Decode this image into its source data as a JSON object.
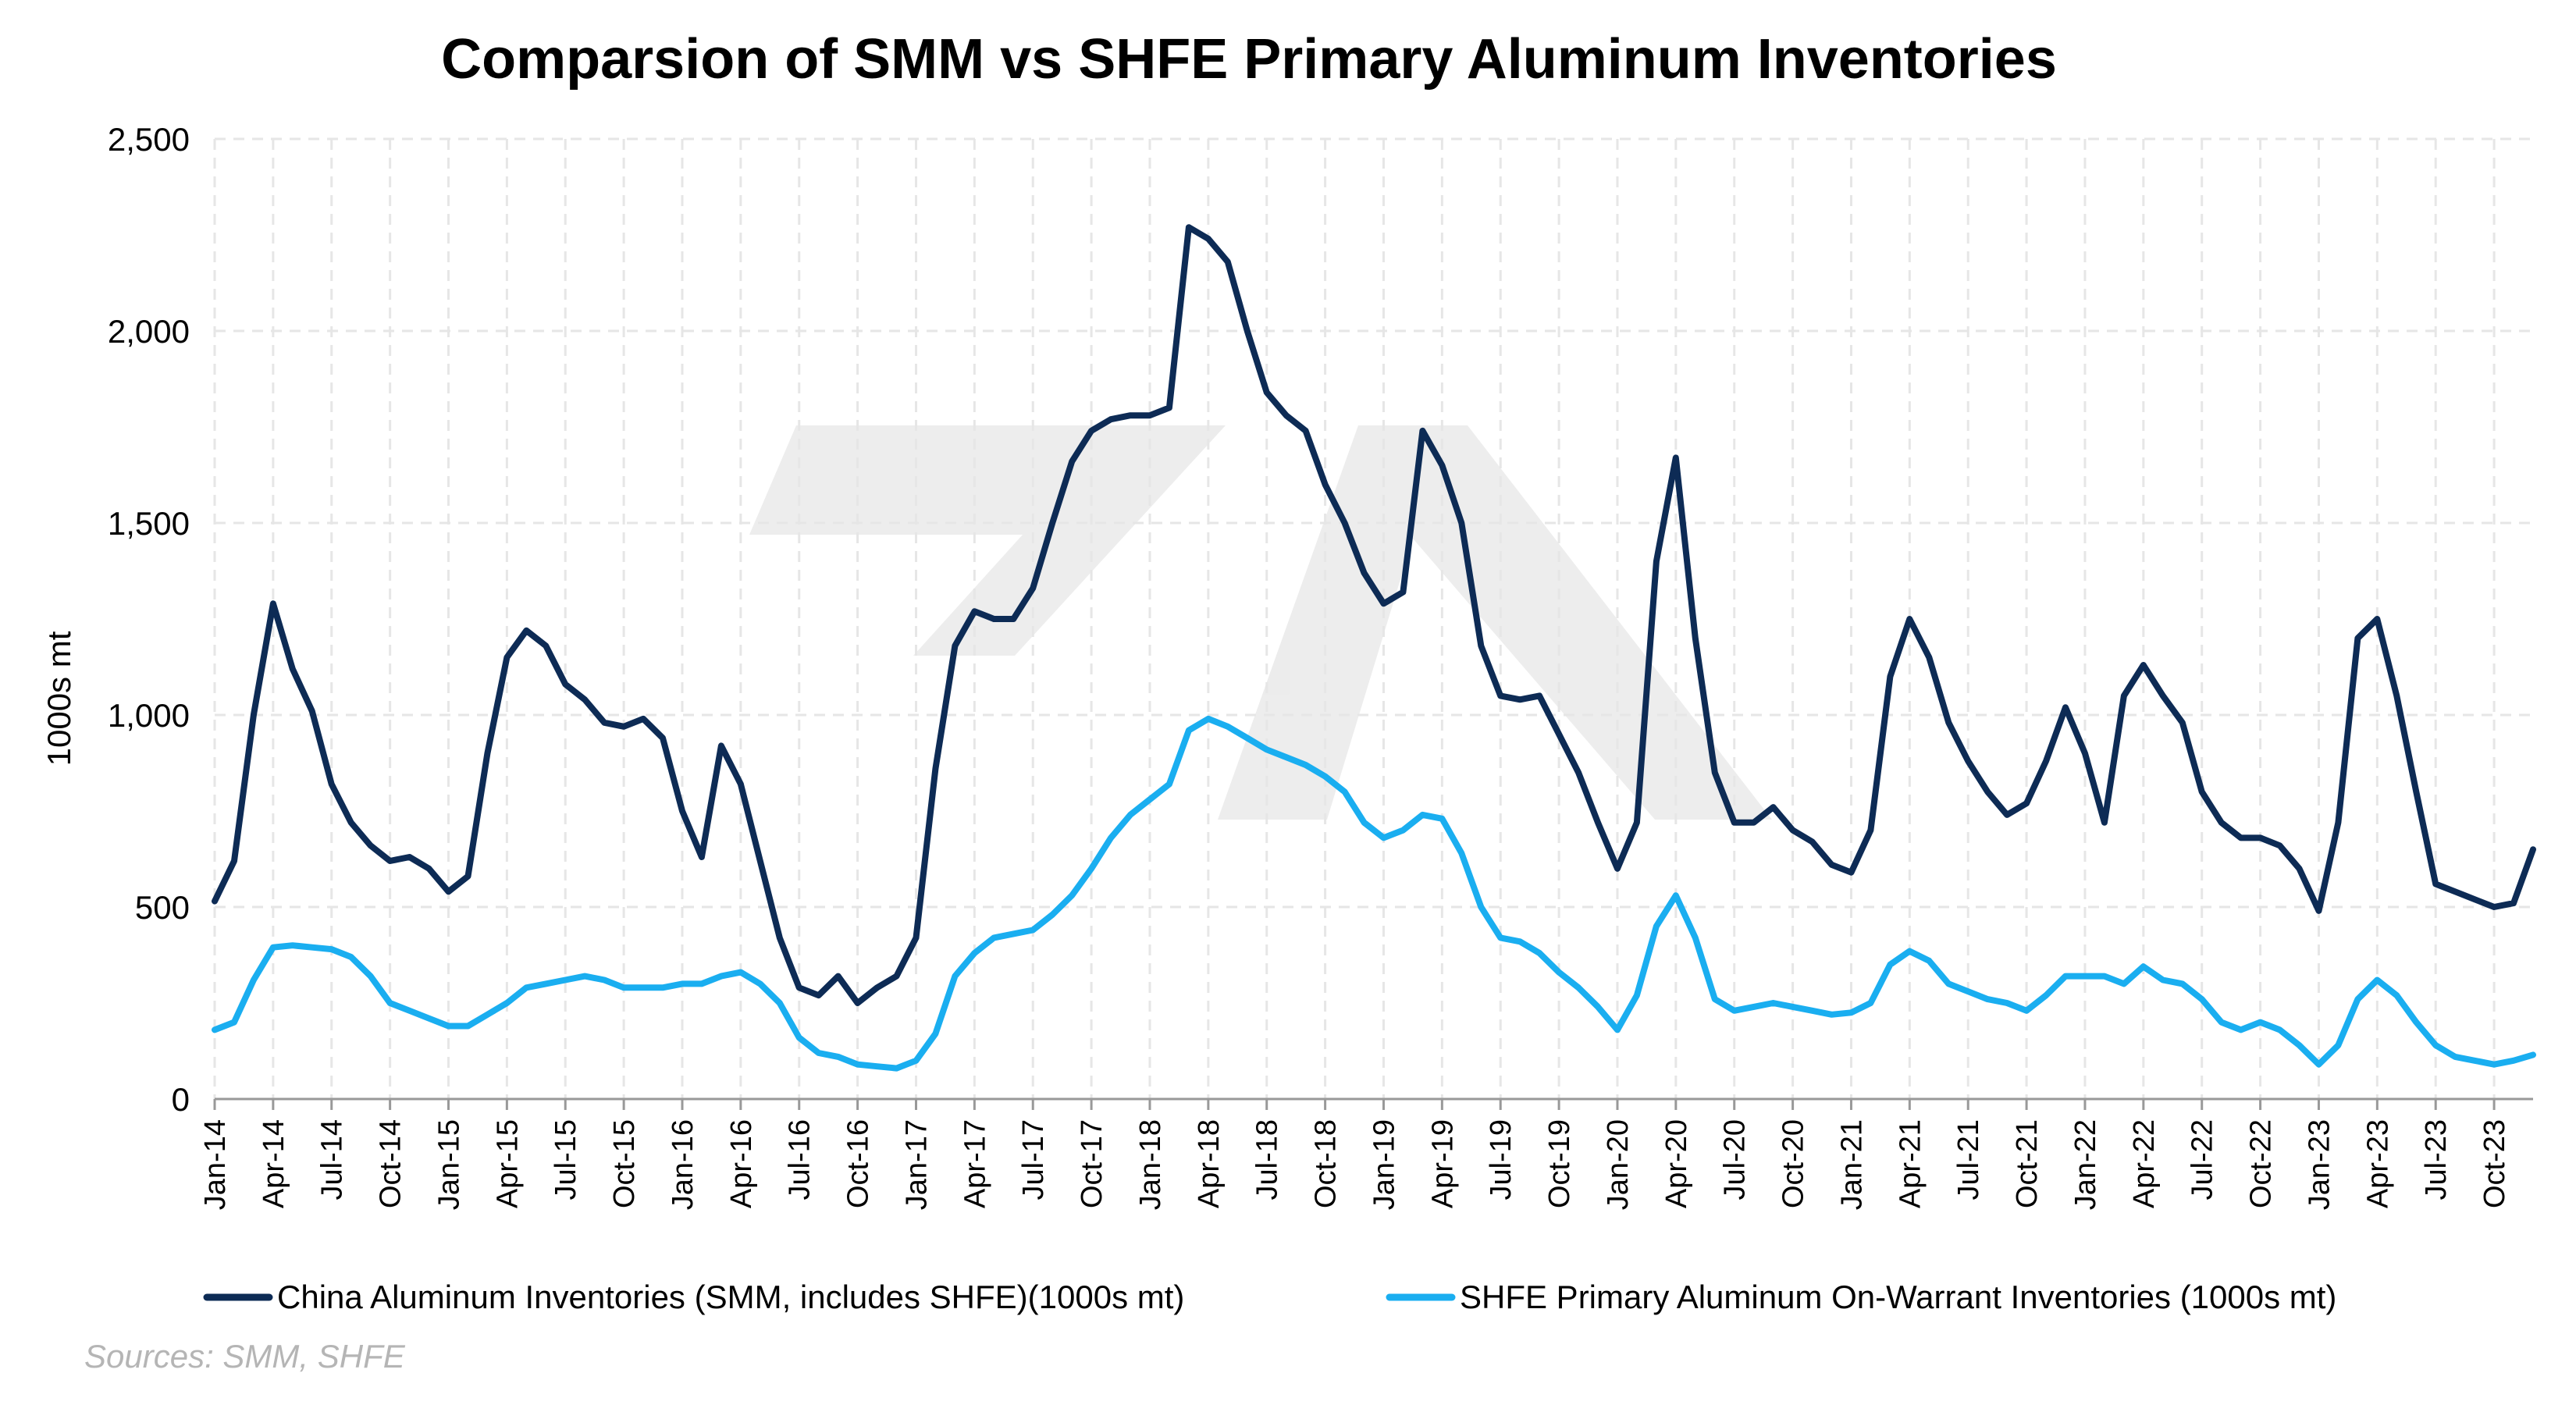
{
  "chart_data": {
    "type": "line",
    "title": "Comparsion of SMM vs SHFE Primary Aluminum Inventories",
    "ylabel": "1000s mt",
    "xlabel": "",
    "ylim": [
      0,
      2500
    ],
    "yticks": [
      0,
      500,
      1000,
      1500,
      2000,
      2500
    ],
    "ytick_labels": [
      "0",
      "500",
      "1,000",
      "1,500",
      "2,000",
      "2,500"
    ],
    "x_range": [
      "2014-01",
      "2023-12"
    ],
    "x_tick_labels": [
      "Jan-14",
      "Apr-14",
      "Jul-14",
      "Oct-14",
      "Jan-15",
      "Apr-15",
      "Jul-15",
      "Oct-15",
      "Jan-16",
      "Apr-16",
      "Jul-16",
      "Oct-16",
      "Jan-17",
      "Apr-17",
      "Jul-17",
      "Oct-17",
      "Jan-18",
      "Apr-18",
      "Jul-18",
      "Oct-18",
      "Jan-19",
      "Apr-19",
      "Jul-19",
      "Oct-19",
      "Jan-20",
      "Apr-20",
      "Jul-20",
      "Oct-20",
      "Jan-21",
      "Apr-21",
      "Jul-21",
      "Oct-21",
      "Jan-22",
      "Apr-22",
      "Jul-22",
      "Oct-22",
      "Jan-23",
      "Apr-23",
      "Jul-23",
      "Oct-23"
    ],
    "grid": true,
    "legend_position": "bottom",
    "series": [
      {
        "name": "China Aluminum Inventories (SMM, includes SHFE)(1000s mt)",
        "color": "#0d2b55",
        "points": [
          [
            "2014-01",
            515
          ],
          [
            "2014-02",
            620
          ],
          [
            "2014-03",
            1000
          ],
          [
            "2014-04",
            1290
          ],
          [
            "2014-05",
            1120
          ],
          [
            "2014-06",
            1010
          ],
          [
            "2014-07",
            820
          ],
          [
            "2014-08",
            720
          ],
          [
            "2014-09",
            660
          ],
          [
            "2014-10",
            620
          ],
          [
            "2014-11",
            630
          ],
          [
            "2014-12",
            600
          ],
          [
            "2015-01",
            540
          ],
          [
            "2015-02",
            580
          ],
          [
            "2015-03",
            900
          ],
          [
            "2015-04",
            1150
          ],
          [
            "2015-05",
            1220
          ],
          [
            "2015-06",
            1180
          ],
          [
            "2015-07",
            1080
          ],
          [
            "2015-08",
            1040
          ],
          [
            "2015-09",
            980
          ],
          [
            "2015-10",
            970
          ],
          [
            "2015-11",
            990
          ],
          [
            "2015-12",
            940
          ],
          [
            "2016-01",
            750
          ],
          [
            "2016-02",
            630
          ],
          [
            "2016-03",
            920
          ],
          [
            "2016-04",
            820
          ],
          [
            "2016-05",
            620
          ],
          [
            "2016-06",
            420
          ],
          [
            "2016-07",
            290
          ],
          [
            "2016-08",
            270
          ],
          [
            "2016-09",
            320
          ],
          [
            "2016-10",
            250
          ],
          [
            "2016-11",
            290
          ],
          [
            "2016-12",
            320
          ],
          [
            "2017-01",
            420
          ],
          [
            "2017-02",
            860
          ],
          [
            "2017-03",
            1180
          ],
          [
            "2017-04",
            1270
          ],
          [
            "2017-05",
            1250
          ],
          [
            "2017-06",
            1250
          ],
          [
            "2017-07",
            1330
          ],
          [
            "2017-08",
            1500
          ],
          [
            "2017-09",
            1660
          ],
          [
            "2017-10",
            1740
          ],
          [
            "2017-11",
            1770
          ],
          [
            "2017-12",
            1780
          ],
          [
            "2018-01",
            1780
          ],
          [
            "2018-02",
            1800
          ],
          [
            "2018-03",
            2270
          ],
          [
            "2018-04",
            2240
          ],
          [
            "2018-05",
            2180
          ],
          [
            "2018-06",
            2000
          ],
          [
            "2018-07",
            1840
          ],
          [
            "2018-08",
            1780
          ],
          [
            "2018-09",
            1740
          ],
          [
            "2018-10",
            1600
          ],
          [
            "2018-11",
            1500
          ],
          [
            "2018-12",
            1370
          ],
          [
            "2019-01",
            1290
          ],
          [
            "2019-02",
            1320
          ],
          [
            "2019-03",
            1740
          ],
          [
            "2019-04",
            1650
          ],
          [
            "2019-05",
            1500
          ],
          [
            "2019-06",
            1180
          ],
          [
            "2019-07",
            1050
          ],
          [
            "2019-08",
            1040
          ],
          [
            "2019-09",
            1050
          ],
          [
            "2019-10",
            950
          ],
          [
            "2019-11",
            850
          ],
          [
            "2019-12",
            720
          ],
          [
            "2020-01",
            600
          ],
          [
            "2020-02",
            720
          ],
          [
            "2020-03",
            1400
          ],
          [
            "2020-04",
            1670
          ],
          [
            "2020-05",
            1200
          ],
          [
            "2020-06",
            850
          ],
          [
            "2020-07",
            720
          ],
          [
            "2020-08",
            720
          ],
          [
            "2020-09",
            760
          ],
          [
            "2020-10",
            700
          ],
          [
            "2020-11",
            670
          ],
          [
            "2020-12",
            610
          ],
          [
            "2021-01",
            590
          ],
          [
            "2021-02",
            700
          ],
          [
            "2021-03",
            1100
          ],
          [
            "2021-04",
            1250
          ],
          [
            "2021-05",
            1150
          ],
          [
            "2021-06",
            980
          ],
          [
            "2021-07",
            880
          ],
          [
            "2021-08",
            800
          ],
          [
            "2021-09",
            740
          ],
          [
            "2021-10",
            770
          ],
          [
            "2021-11",
            880
          ],
          [
            "2021-12",
            1020
          ],
          [
            "2022-01",
            900
          ],
          [
            "2022-02",
            720
          ],
          [
            "2022-03",
            1050
          ],
          [
            "2022-04",
            1130
          ],
          [
            "2022-05",
            1050
          ],
          [
            "2022-06",
            980
          ],
          [
            "2022-07",
            800
          ],
          [
            "2022-08",
            720
          ],
          [
            "2022-09",
            680
          ],
          [
            "2022-10",
            680
          ],
          [
            "2022-11",
            660
          ],
          [
            "2022-12",
            600
          ],
          [
            "2023-01",
            490
          ],
          [
            "2023-02",
            720
          ],
          [
            "2023-03",
            1200
          ],
          [
            "2023-04",
            1250
          ],
          [
            "2023-05",
            1050
          ],
          [
            "2023-06",
            800
          ],
          [
            "2023-07",
            560
          ],
          [
            "2023-08",
            540
          ],
          [
            "2023-09",
            520
          ],
          [
            "2023-10",
            500
          ],
          [
            "2023-11",
            510
          ],
          [
            "2023-12",
            650
          ]
        ]
      },
      {
        "name": "SHFE Primary Aluminum On-Warrant Inventories (1000s mt)",
        "color": "#1aaef0",
        "points": [
          [
            "2014-01",
            180
          ],
          [
            "2014-02",
            200
          ],
          [
            "2014-03",
            310
          ],
          [
            "2014-04",
            395
          ],
          [
            "2014-05",
            400
          ],
          [
            "2014-06",
            395
          ],
          [
            "2014-07",
            390
          ],
          [
            "2014-08",
            370
          ],
          [
            "2014-09",
            320
          ],
          [
            "2014-10",
            250
          ],
          [
            "2014-11",
            230
          ],
          [
            "2014-12",
            210
          ],
          [
            "2015-01",
            190
          ],
          [
            "2015-02",
            190
          ],
          [
            "2015-03",
            220
          ],
          [
            "2015-04",
            250
          ],
          [
            "2015-05",
            290
          ],
          [
            "2015-06",
            300
          ],
          [
            "2015-07",
            310
          ],
          [
            "2015-08",
            320
          ],
          [
            "2015-09",
            310
          ],
          [
            "2015-10",
            290
          ],
          [
            "2015-11",
            290
          ],
          [
            "2015-12",
            290
          ],
          [
            "2016-01",
            300
          ],
          [
            "2016-02",
            300
          ],
          [
            "2016-03",
            320
          ],
          [
            "2016-04",
            330
          ],
          [
            "2016-05",
            300
          ],
          [
            "2016-06",
            250
          ],
          [
            "2016-07",
            160
          ],
          [
            "2016-08",
            120
          ],
          [
            "2016-09",
            110
          ],
          [
            "2016-10",
            90
          ],
          [
            "2016-11",
            85
          ],
          [
            "2016-12",
            80
          ],
          [
            "2017-01",
            100
          ],
          [
            "2017-02",
            170
          ],
          [
            "2017-03",
            320
          ],
          [
            "2017-04",
            380
          ],
          [
            "2017-05",
            420
          ],
          [
            "2017-06",
            430
          ],
          [
            "2017-07",
            440
          ],
          [
            "2017-08",
            480
          ],
          [
            "2017-09",
            530
          ],
          [
            "2017-10",
            600
          ],
          [
            "2017-11",
            680
          ],
          [
            "2017-12",
            740
          ],
          [
            "2018-01",
            780
          ],
          [
            "2018-02",
            820
          ],
          [
            "2018-03",
            960
          ],
          [
            "2018-04",
            990
          ],
          [
            "2018-05",
            970
          ],
          [
            "2018-06",
            940
          ],
          [
            "2018-07",
            910
          ],
          [
            "2018-08",
            890
          ],
          [
            "2018-09",
            870
          ],
          [
            "2018-10",
            840
          ],
          [
            "2018-11",
            800
          ],
          [
            "2018-12",
            720
          ],
          [
            "2019-01",
            680
          ],
          [
            "2019-02",
            700
          ],
          [
            "2019-03",
            740
          ],
          [
            "2019-04",
            730
          ],
          [
            "2019-05",
            640
          ],
          [
            "2019-06",
            500
          ],
          [
            "2019-07",
            420
          ],
          [
            "2019-08",
            410
          ],
          [
            "2019-09",
            380
          ],
          [
            "2019-10",
            330
          ],
          [
            "2019-11",
            290
          ],
          [
            "2019-12",
            240
          ],
          [
            "2020-01",
            180
          ],
          [
            "2020-02",
            270
          ],
          [
            "2020-03",
            450
          ],
          [
            "2020-04",
            530
          ],
          [
            "2020-05",
            420
          ],
          [
            "2020-06",
            260
          ],
          [
            "2020-07",
            230
          ],
          [
            "2020-08",
            240
          ],
          [
            "2020-09",
            250
          ],
          [
            "2020-10",
            240
          ],
          [
            "2020-11",
            230
          ],
          [
            "2020-12",
            220
          ],
          [
            "2021-01",
            225
          ],
          [
            "2021-02",
            250
          ],
          [
            "2021-03",
            350
          ],
          [
            "2021-04",
            385
          ],
          [
            "2021-05",
            360
          ],
          [
            "2021-06",
            300
          ],
          [
            "2021-07",
            280
          ],
          [
            "2021-08",
            260
          ],
          [
            "2021-09",
            250
          ],
          [
            "2021-10",
            230
          ],
          [
            "2021-11",
            270
          ],
          [
            "2021-12",
            320
          ],
          [
            "2022-01",
            320
          ],
          [
            "2022-02",
            320
          ],
          [
            "2022-03",
            300
          ],
          [
            "2022-04",
            345
          ],
          [
            "2022-05",
            310
          ],
          [
            "2022-06",
            300
          ],
          [
            "2022-07",
            260
          ],
          [
            "2022-08",
            200
          ],
          [
            "2022-09",
            180
          ],
          [
            "2022-10",
            200
          ],
          [
            "2022-11",
            180
          ],
          [
            "2022-12",
            140
          ],
          [
            "2023-01",
            90
          ],
          [
            "2023-02",
            140
          ],
          [
            "2023-03",
            260
          ],
          [
            "2023-04",
            310
          ],
          [
            "2023-05",
            270
          ],
          [
            "2023-06",
            200
          ],
          [
            "2023-07",
            140
          ],
          [
            "2023-08",
            110
          ],
          [
            "2023-09",
            100
          ],
          [
            "2023-10",
            90
          ],
          [
            "2023-11",
            100
          ],
          [
            "2023-12",
            115
          ]
        ]
      }
    ],
    "source_note": "Sources: SMM, SHFE"
  }
}
